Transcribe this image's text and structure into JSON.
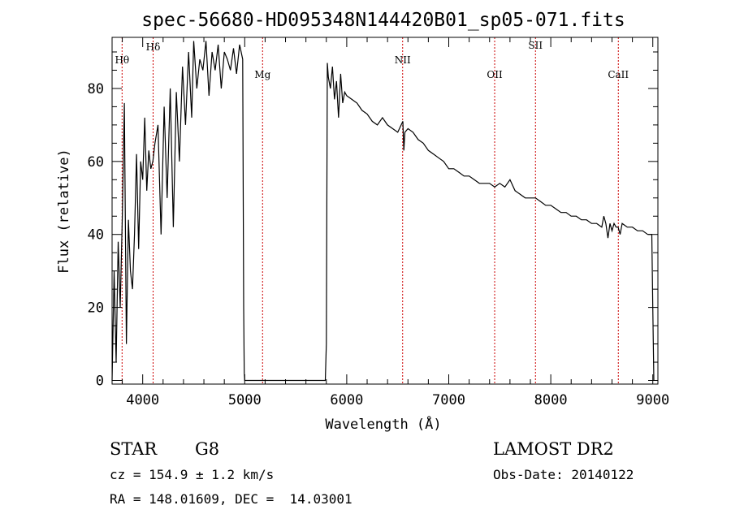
{
  "chart_data": {
    "type": "line",
    "title": "spec-56680-HD095348N144420B01_sp05-071.fits",
    "xlabel": "Wavelength (Å)",
    "ylabel": "Flux (relative)",
    "xlim": [
      3700,
      9050
    ],
    "ylim": [
      -1,
      94
    ],
    "x_ticks": [
      4000,
      5000,
      6000,
      7000,
      8000,
      9000
    ],
    "x_tick_labels": [
      "4000",
      "5000",
      "6000",
      "7000",
      "8000",
      "9000"
    ],
    "y_ticks": [
      0,
      20,
      40,
      60,
      80
    ],
    "y_tick_labels": [
      "0",
      "20",
      "40",
      "60",
      "80"
    ],
    "grid": false,
    "line_color": "#000000",
    "marker_color": "#cc0000",
    "lines": [
      {
        "label": "Hθ",
        "wavelength": 3798
      },
      {
        "label": "Hδ",
        "wavelength": 4102
      },
      {
        "label": "Mg",
        "wavelength": 5175
      },
      {
        "label": "NII",
        "wavelength": 6548
      },
      {
        "label": "OII",
        "wavelength": 7450
      },
      {
        "label": "SII",
        "wavelength": 7850
      },
      {
        "label": "CaII",
        "wavelength": 8662
      }
    ],
    "series": [
      {
        "x": [
          3700,
          3720,
          3740,
          3760,
          3780,
          3800,
          3820,
          3840,
          3860,
          3880,
          3900,
          3920,
          3940,
          3960,
          3980,
          4000,
          4020,
          4040,
          4060,
          4080,
          4100,
          4120,
          4150,
          4180,
          4210,
          4240,
          4270,
          4300,
          4330,
          4360,
          4390,
          4420,
          4450,
          4480,
          4500,
          4530,
          4560,
          4590,
          4620,
          4650,
          4680,
          4710,
          4740,
          4770,
          4800,
          4830,
          4860,
          4890,
          4920,
          4950,
          4980,
          4990,
          4995,
          5000,
          5100,
          5300,
          5500,
          5700,
          5790,
          5800,
          5810,
          5820,
          5840,
          5860,
          5880,
          5900,
          5920,
          5940,
          5960,
          5980,
          6000,
          6050,
          6100,
          6150,
          6200,
          6250,
          6300,
          6350,
          6400,
          6450,
          6500,
          6550,
          6560,
          6570,
          6600,
          6650,
          6700,
          6750,
          6800,
          6850,
          6900,
          6950,
          7000,
          7050,
          7100,
          7150,
          7200,
          7250,
          7300,
          7350,
          7400,
          7450,
          7500,
          7550,
          7600,
          7650,
          7700,
          7750,
          7800,
          7850,
          7900,
          7950,
          8000,
          8050,
          8100,
          8150,
          8200,
          8250,
          8300,
          8350,
          8400,
          8450,
          8500,
          8520,
          8540,
          8560,
          8580,
          8600,
          8620,
          8640,
          8660,
          8680,
          8700,
          8750,
          8800,
          8850,
          8900,
          8950,
          8990,
          9000,
          9010
        ],
        "y": [
          0,
          30,
          5,
          38,
          20,
          45,
          76,
          10,
          44,
          30,
          25,
          40,
          62,
          36,
          60,
          55,
          72,
          52,
          63,
          58,
          60,
          65,
          70,
          40,
          75,
          50,
          80,
          42,
          79,
          60,
          86,
          70,
          90,
          72,
          93,
          80,
          88,
          85,
          93,
          78,
          90,
          85,
          92,
          80,
          90,
          88,
          85,
          91,
          84,
          92,
          88,
          20,
          2,
          0,
          0,
          0,
          0,
          0,
          0,
          10,
          87,
          83,
          80,
          86,
          77,
          82,
          72,
          84,
          76,
          79,
          78,
          77,
          76,
          74,
          73,
          71,
          70,
          72,
          70,
          69,
          68,
          71,
          63,
          68,
          69,
          68,
          66,
          65,
          63,
          62,
          61,
          60,
          58,
          58,
          57,
          56,
          56,
          55,
          54,
          54,
          54,
          53,
          54,
          53,
          55,
          52,
          51,
          50,
          50,
          50,
          49,
          48,
          48,
          47,
          46,
          46,
          45,
          45,
          44,
          44,
          43,
          43,
          42,
          45,
          43,
          39,
          43,
          41,
          43,
          42,
          42,
          40,
          43,
          42,
          42,
          41,
          41,
          40,
          40,
          20,
          0
        ]
      }
    ]
  },
  "info": {
    "object_class": "STAR",
    "subclass": "G8",
    "survey": "LAMOST DR2",
    "cz": "cz = 154.9 ± 1.2 km/s",
    "obs_date": "Obs-Date: 20140122",
    "coords": "RA = 148.01609, DEC =  14.03001"
  }
}
